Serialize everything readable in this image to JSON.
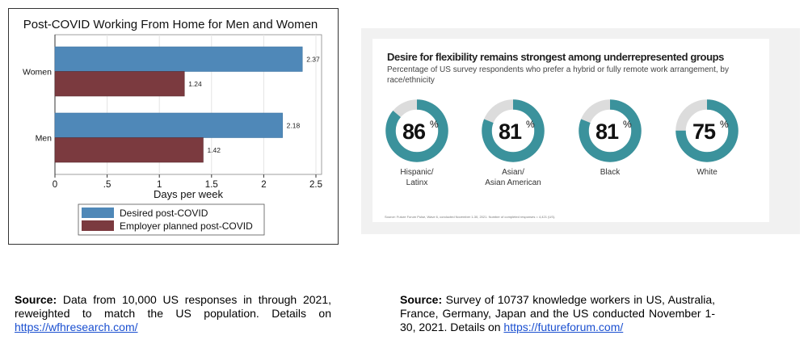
{
  "chart_data": [
    {
      "type": "bar",
      "orientation": "horizontal",
      "title": "Post-COVID Working From Home for Men and Women",
      "xlabel": "Days per week",
      "categories": [
        "Women",
        "Men"
      ],
      "series": [
        {
          "name": "Desired post-COVID",
          "color": "#4f88b8",
          "values": [
            2.37,
            2.18
          ],
          "labels": [
            "2.37",
            "2.18"
          ]
        },
        {
          "name": "Employer planned post-COVID",
          "color": "#7b3a3f",
          "values": [
            1.24,
            1.42
          ],
          "labels": [
            "1.24",
            "1.42"
          ]
        }
      ],
      "xlim": [
        0,
        2.6
      ],
      "xticks": [
        0,
        0.5,
        1,
        1.5,
        2,
        2.5
      ],
      "xtick_labels": [
        "0",
        ".5",
        "1",
        "1.5",
        "2",
        "2.5"
      ],
      "grid": true,
      "legend": "bottom"
    },
    {
      "type": "pie",
      "variant": "donut",
      "title": "Desire for flexibility remains strongest among underrepresented groups",
      "subtitle": "Percentage of US survey respondents who prefer a hybrid or fully remote work arrangement, by race/ethnicity",
      "note": "Source: Future Forum Pulse, Wave 6, conducted November 1-30, 2021. Number of completed responses = 4,421 (US).",
      "categories": [
        "Hispanic/\nLatinx",
        "Asian/\nAsian American",
        "Black",
        "White"
      ],
      "values": [
        86,
        81,
        81,
        75
      ],
      "value_labels": [
        "86",
        "81",
        "81",
        "75"
      ],
      "unit": "%",
      "colors": {
        "fill": "#3b929c",
        "remainder": "#dcdcdc"
      }
    }
  ],
  "sources": {
    "left": {
      "label": "Source:",
      "text": " Data from 10,000 US responses in through 2021, reweighted to match the US population. Details on ",
      "link": "https://wfhresearch.com/"
    },
    "right": {
      "label": "Source:",
      "text": " Survey of 10737 knowledge workers in US, Australia, France, Germany, Japan and the US conducted November 1-30, 2021. Details on ",
      "link": "https://futureforum.com/"
    }
  }
}
